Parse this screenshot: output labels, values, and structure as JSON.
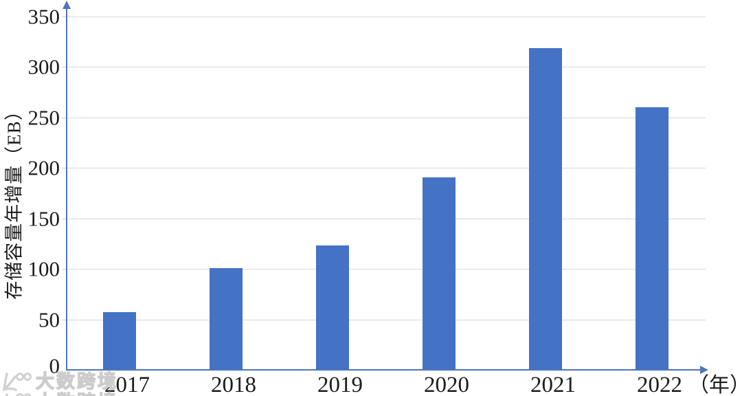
{
  "chart_data": {
    "type": "bar",
    "title": "",
    "categories": [
      "2017",
      "2018",
      "2019",
      "2020",
      "2021",
      "2022"
    ],
    "values": [
      57,
      101,
      123,
      191,
      319,
      260
    ],
    "ylabel": "存储容量年增量（EB）",
    "xlabel": "（年）",
    "yticks": [
      0,
      50,
      100,
      150,
      200,
      250,
      300,
      350
    ],
    "ylim": [
      0,
      350
    ],
    "grid": "horizontal-only",
    "legend": "none",
    "bar_color": "#4472c4",
    "axis_color": "#4f74bd",
    "gridline_color": "#d9d9d9"
  },
  "watermark": {
    "logo": "k100-logo",
    "text": "大数跨境"
  }
}
